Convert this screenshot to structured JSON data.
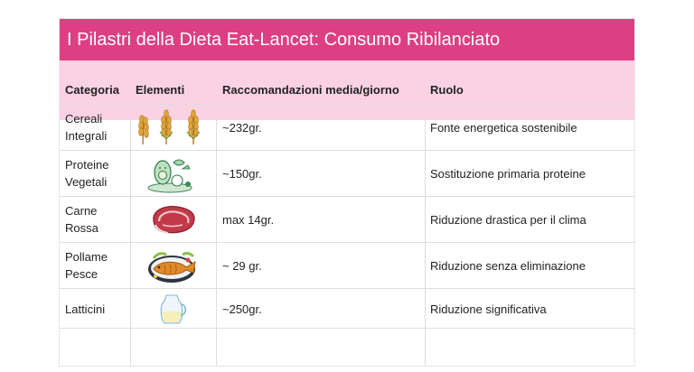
{
  "table": {
    "title": "I Pilastri della Dieta Eat-Lancet: Consumo Ribilanciato",
    "columns": [
      "Categoria",
      "Elementi",
      "Raccomandazioni media/giorno",
      "Ruolo"
    ],
    "rows": [
      {
        "categoria_1": "Cereali",
        "categoria_2": "Integrali",
        "icon": "wheat-icon",
        "racc": "~232gr.",
        "ruolo": "Fonte energetica sostenibile"
      },
      {
        "categoria_1": "Proteine",
        "categoria_2": "Vegetali",
        "icon": "vegetables-icon",
        "racc": "~150gr.",
        "ruolo": "Sostituzione primaria proteine"
      },
      {
        "categoria_1": "Carne",
        "categoria_2": "Rossa",
        "icon": "steak-icon",
        "racc": "max 14gr.",
        "ruolo": "Riduzione drastica per il clima"
      },
      {
        "categoria_1": "Pollame",
        "categoria_2": "Pesce",
        "icon": "fish-plate-icon",
        "racc": "~ 29 gr.",
        "ruolo": "Riduzione senza eliminazione"
      },
      {
        "categoria_1": "Latticini",
        "categoria_2": "",
        "icon": "milk-jug-icon",
        "racc": "~250gr.",
        "ruolo": "Riduzione significativa"
      }
    ]
  },
  "colors": {
    "title_bg": "#de3f83",
    "header_bg": "#fbd2e3"
  }
}
